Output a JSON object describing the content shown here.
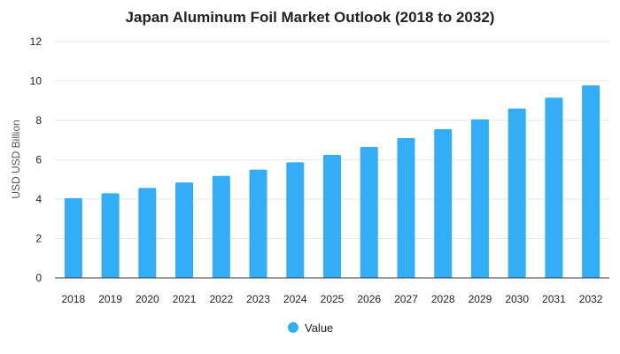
{
  "chart_data": {
    "type": "bar",
    "title": "Japan Aluminum Foil Market Outlook (2018 to 2032)",
    "xlabel": "",
    "ylabel": "USD USD Billion",
    "categories": [
      "2018",
      "2019",
      "2020",
      "2021",
      "2022",
      "2023",
      "2024",
      "2025",
      "2026",
      "2027",
      "2028",
      "2029",
      "2030",
      "2031",
      "2032"
    ],
    "series": [
      {
        "name": "Value",
        "values": [
          4.05,
          4.3,
          4.57,
          4.85,
          5.18,
          5.5,
          5.87,
          6.25,
          6.65,
          7.1,
          7.55,
          8.05,
          8.6,
          9.15,
          9.78
        ]
      }
    ],
    "ylim": [
      0,
      12
    ],
    "yticks": [
      "0",
      "2",
      "4",
      "6",
      "8",
      "10",
      "12"
    ],
    "grid": true,
    "legend": "bottom-center",
    "colors": {
      "bar": "#33adf5"
    }
  }
}
